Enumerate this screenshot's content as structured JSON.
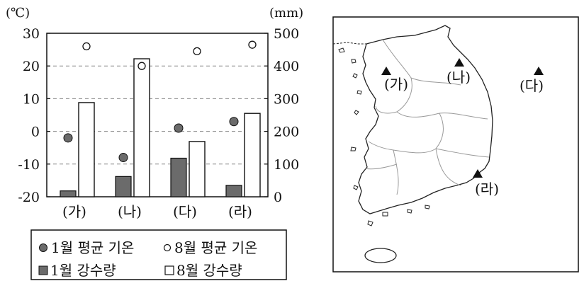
{
  "chart_data": {
    "type": "bar",
    "categories": [
      "(가)",
      "(나)",
      "(다)",
      "(라)"
    ],
    "left_axis": {
      "unit": "(℃)",
      "ylim": [
        -20,
        30
      ],
      "ticks": [
        "30",
        "20",
        "10",
        "0",
        "-10",
        "-20"
      ]
    },
    "right_axis": {
      "unit": "(mm)",
      "ylim": [
        0,
        500
      ],
      "ticks": [
        "500",
        "400",
        "300",
        "200",
        "100",
        "0"
      ]
    },
    "series": [
      {
        "name": "1월 평균 기온",
        "type": "scatter",
        "axis": "left",
        "marker": "filled-circle",
        "values": [
          -2,
          -8,
          1,
          3
        ]
      },
      {
        "name": "8월 평균 기온",
        "type": "scatter",
        "axis": "left",
        "marker": "open-circle",
        "values": [
          26,
          20,
          24.5,
          26.5
        ]
      },
      {
        "name": "1월 강수량",
        "type": "bar",
        "axis": "right",
        "fill": "#6b6b6b",
        "values": [
          18,
          62,
          118,
          35
        ]
      },
      {
        "name": "8월 강수량",
        "type": "bar",
        "axis": "right",
        "fill": "#ffffff",
        "values": [
          288,
          422,
          169,
          255
        ]
      }
    ],
    "grid": "dashed horizontal",
    "legend_position": "bottom"
  },
  "legend": {
    "jan_temp": "1월 평균 기온",
    "aug_temp": "8월 평균 기온",
    "jan_precip": "1월 강수량",
    "aug_precip": "8월 강수량"
  },
  "map": {
    "labels": [
      "(가)",
      "(나)",
      "(다)",
      "(라)"
    ],
    "marker_icon": "triangle-marker-icon"
  },
  "colors": {
    "dark_fill": "#6b6b6b",
    "grid": "#888888"
  }
}
